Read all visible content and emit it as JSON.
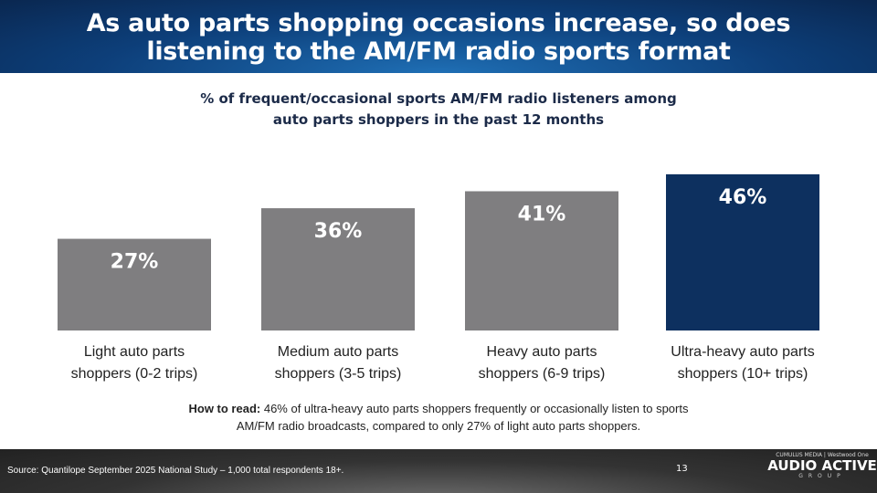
{
  "header": {
    "title_line1": "As auto parts shopping occasions increase, so does",
    "title_line2": "listening to the AM/FM radio sports format"
  },
  "chart_data": {
    "type": "bar",
    "title_line1": "% of frequent/occasional sports AM/FM radio listeners among",
    "title_line2": "auto parts shoppers in the past 12 months",
    "categories": [
      [
        "Light auto parts",
        "shoppers (0-2 trips)"
      ],
      [
        "Medium auto parts",
        "shoppers (3-5 trips)"
      ],
      [
        "Heavy auto parts",
        "shoppers (6-9 trips)"
      ],
      [
        "Ultra-heavy auto parts",
        "shoppers (10+ trips)"
      ]
    ],
    "values": [
      27,
      36,
      41,
      46
    ],
    "labels": [
      "27%",
      "36%",
      "41%",
      "46%"
    ],
    "colors": [
      "#7f7e80",
      "#7f7e80",
      "#7f7e80",
      "#0d305f"
    ],
    "ylim": [
      0,
      50
    ],
    "grid": false
  },
  "how_to_read": {
    "label": "How to read:",
    "line1": " 46% of ultra-heavy auto parts shoppers frequently or occasionally listen to sports",
    "line2": "AM/FM radio broadcasts, compared to only 27% of light auto parts shoppers."
  },
  "footer": {
    "source": "Source: Quantilope September 2025 National Study – 1,000 total respondents 18+.",
    "page": "13",
    "logo": {
      "top": "CUMULUS MEDIA | Westwood One",
      "main": "AUDIO ACTIVE",
      "sub": "GROUP"
    }
  }
}
